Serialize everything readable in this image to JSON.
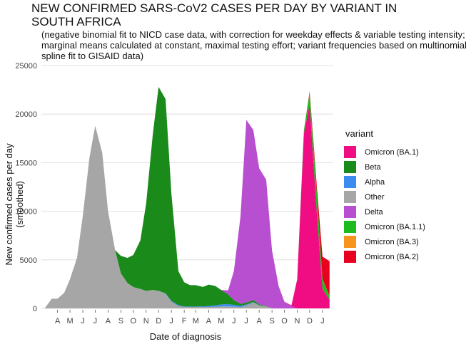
{
  "title": "NEW CONFIRMED SARS-CoV2 CASES PER DAY BY VARIANT IN SOUTH AFRICA",
  "subtitle": "(negative binomial fit to NICD case data, with correction for weekday effects & variable testing intensity; marginal means calculated at constant, maximal testing effort; variant frequencies based on multinomial spline fit to GISAID data)",
  "chart_data": {
    "type": "area",
    "stacked": true,
    "xlabel": "Date of diagnosis",
    "ylabel": "New confirmed cases per day (smoothed)",
    "ylim": [
      0,
      25000
    ],
    "yticks": [
      0,
      5000,
      10000,
      15000,
      20000,
      25000
    ],
    "x_tick_labels": [
      "A",
      "M",
      "J",
      "J",
      "A",
      "S",
      "O",
      "N",
      "D",
      "J",
      "F",
      "M",
      "A",
      "M",
      "J",
      "J",
      "A",
      "S",
      "O",
      "N",
      "D",
      "J"
    ],
    "x_ticks": [
      "2020-04",
      "2020-05",
      "2020-06",
      "2020-07",
      "2020-08",
      "2020-09",
      "2020-10",
      "2020-11",
      "2020-12",
      "2021-01",
      "2021-02",
      "2021-03",
      "2021-04",
      "2021-05",
      "2021-06",
      "2021-07",
      "2021-08",
      "2021-09",
      "2021-10",
      "2021-11",
      "2021-12",
      "2022-01"
    ],
    "grid": true,
    "legend_title": "variant",
    "legend_position": "right",
    "x": [
      "2020-03-15",
      "2020-04-01",
      "2020-04-15",
      "2020-05-01",
      "2020-05-15",
      "2020-06-01",
      "2020-06-15",
      "2020-07-01",
      "2020-07-15",
      "2020-08-01",
      "2020-08-15",
      "2020-09-01",
      "2020-09-15",
      "2020-10-01",
      "2020-10-15",
      "2020-11-01",
      "2020-11-15",
      "2020-12-01",
      "2020-12-15",
      "2021-01-01",
      "2021-01-15",
      "2021-02-01",
      "2021-02-15",
      "2021-03-01",
      "2021-03-15",
      "2021-04-01",
      "2021-04-15",
      "2021-05-01",
      "2021-05-15",
      "2021-06-01",
      "2021-06-15",
      "2021-07-01",
      "2021-07-15",
      "2021-08-01",
      "2021-08-15",
      "2021-09-01",
      "2021-09-15",
      "2021-10-01",
      "2021-10-15",
      "2021-11-01",
      "2021-11-15",
      "2021-12-01",
      "2021-12-15",
      "2022-01-01",
      "2022-01-15",
      "2022-02-01"
    ],
    "series": [
      {
        "name": "Other",
        "color": "#A6A6A6",
        "values": [
          0,
          1000,
          1000,
          1600,
          3000,
          5200,
          9500,
          15500,
          18800,
          16000,
          10000,
          6000,
          3600,
          2600,
          2200,
          2000,
          1800,
          1900,
          1800,
          1500,
          700,
          250,
          150,
          150,
          150,
          150,
          150,
          160,
          200,
          200,
          180,
          120,
          300,
          600,
          300,
          200,
          0,
          0,
          0,
          0,
          0,
          0,
          0,
          0,
          0,
          0
        ]
      },
      {
        "name": "Alpha",
        "color": "#3C8CF0",
        "values": [
          0,
          0,
          0,
          0,
          0,
          0,
          0,
          0,
          0,
          0,
          0,
          0,
          0,
          0,
          0,
          0,
          0,
          0,
          0,
          50,
          80,
          80,
          50,
          40,
          40,
          60,
          100,
          150,
          200,
          250,
          180,
          150,
          100,
          60,
          30,
          0,
          0,
          0,
          0,
          0,
          0,
          0,
          0,
          0,
          0,
          0
        ]
      },
      {
        "name": "Beta",
        "color": "#1A8A1A",
        "values": [
          0,
          0,
          0,
          0,
          0,
          0,
          0,
          0,
          0,
          0,
          0,
          0,
          1800,
          2600,
          3300,
          5000,
          9000,
          16000,
          21000,
          20000,
          11000,
          3500,
          2500,
          2200,
          2200,
          2000,
          2200,
          2000,
          1500,
          1000,
          500,
          200,
          200,
          200,
          100,
          50,
          0,
          0,
          0,
          0,
          0,
          0,
          0,
          0,
          0,
          0
        ]
      },
      {
        "name": "Delta",
        "color": "#B84FD0",
        "values": [
          0,
          0,
          0,
          0,
          0,
          0,
          0,
          0,
          0,
          0,
          0,
          0,
          0,
          0,
          0,
          0,
          0,
          0,
          0,
          0,
          0,
          0,
          0,
          0,
          0,
          0,
          0,
          0,
          0,
          400,
          3000,
          9000,
          18800,
          17500,
          14000,
          13000,
          6000,
          2300,
          700,
          200,
          0,
          0,
          0,
          0,
          0,
          0
        ]
      },
      {
        "name": "Omicron (BA.1)",
        "color": "#F00C82",
        "values": [
          0,
          0,
          0,
          0,
          0,
          0,
          0,
          0,
          0,
          0,
          0,
          0,
          0,
          0,
          0,
          0,
          0,
          0,
          0,
          0,
          0,
          0,
          0,
          0,
          0,
          0,
          0,
          0,
          0,
          0,
          0,
          0,
          0,
          0,
          0,
          0,
          0,
          0,
          0,
          100,
          3000,
          18000,
          21000,
          10000,
          2000,
          900
        ]
      },
      {
        "name": "Omicron (BA.1.1)",
        "color": "#1FBA1F",
        "values": [
          0,
          0,
          0,
          0,
          0,
          0,
          0,
          0,
          0,
          0,
          0,
          0,
          0,
          0,
          0,
          0,
          0,
          0,
          0,
          0,
          0,
          0,
          0,
          0,
          0,
          0,
          0,
          0,
          0,
          0,
          0,
          0,
          0,
          0,
          0,
          0,
          0,
          0,
          0,
          0,
          30,
          300,
          1200,
          2000,
          1000,
          300
        ]
      },
      {
        "name": "Omicron (BA.3)",
        "color": "#F7941D",
        "values": [
          0,
          0,
          0,
          0,
          0,
          0,
          0,
          0,
          0,
          0,
          0,
          0,
          0,
          0,
          0,
          0,
          0,
          0,
          0,
          0,
          0,
          0,
          0,
          0,
          0,
          0,
          0,
          0,
          0,
          0,
          0,
          0,
          0,
          0,
          0,
          0,
          0,
          0,
          0,
          0,
          0,
          0,
          0,
          0,
          30,
          60
        ]
      },
      {
        "name": "Omicron (BA.2)",
        "color": "#E8001E",
        "values": [
          0,
          0,
          0,
          0,
          0,
          0,
          0,
          0,
          0,
          0,
          0,
          0,
          0,
          0,
          0,
          0,
          0,
          0,
          0,
          0,
          0,
          0,
          0,
          0,
          0,
          0,
          0,
          0,
          0,
          0,
          0,
          0,
          0,
          0,
          0,
          0,
          0,
          0,
          0,
          0,
          0,
          20,
          150,
          700,
          2300,
          3600
        ]
      }
    ],
    "legend_order": [
      "Omicron (BA.1)",
      "Beta",
      "Alpha",
      "Other",
      "Delta",
      "Omicron (BA.1.1)",
      "Omicron (BA.3)",
      "Omicron (BA.2)"
    ]
  }
}
